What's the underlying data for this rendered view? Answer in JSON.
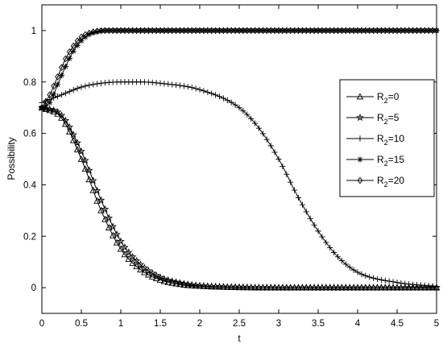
{
  "chart_data": {
    "type": "line",
    "title": "",
    "xlabel": "t",
    "ylabel": "Possibility",
    "xlim": [
      0,
      5
    ],
    "ylim": [
      -0.1,
      1.1
    ],
    "xticks": [
      "0",
      "0.5",
      "1",
      "1.5",
      "2",
      "2.5",
      "3",
      "3.5",
      "4",
      "4.5",
      "5"
    ],
    "yticks": [
      "0",
      "0.2",
      "0.4",
      "0.6",
      "0.8",
      "1"
    ],
    "grid": false,
    "legend_position": "right",
    "series": [
      {
        "name": "R₂=0",
        "label_main": "R",
        "label_sub": "2",
        "label_tail": "=0",
        "marker": "triangle",
        "x": [
          0,
          0.25,
          0.5,
          0.75,
          1.0,
          1.25,
          1.5,
          1.75,
          2.0,
          2.5,
          3.0,
          4.0,
          5.0
        ],
        "y": [
          0.7,
          0.66,
          0.5,
          0.3,
          0.15,
          0.07,
          0.03,
          0.013,
          0.006,
          0.001,
          0,
          0,
          0
        ]
      },
      {
        "name": "R₂=5",
        "label_main": "R",
        "label_sub": "2",
        "label_tail": "=5",
        "marker": "star",
        "x": [
          0,
          0.25,
          0.5,
          0.75,
          1.0,
          1.25,
          1.5,
          1.75,
          2.0,
          2.5,
          3.0,
          4.0,
          5.0
        ],
        "y": [
          0.7,
          0.67,
          0.53,
          0.34,
          0.18,
          0.09,
          0.04,
          0.018,
          0.008,
          0.002,
          0,
          0,
          0
        ]
      },
      {
        "name": "R₂=10",
        "label_main": "R",
        "label_sub": "2",
        "label_tail": "=10",
        "marker": "plus",
        "x": [
          0,
          0.25,
          0.5,
          0.75,
          1.0,
          1.25,
          1.5,
          2.0,
          2.5,
          2.75,
          3.0,
          3.25,
          3.5,
          3.75,
          4.0,
          4.5,
          5.0
        ],
        "y": [
          0.72,
          0.75,
          0.78,
          0.795,
          0.8,
          0.8,
          0.795,
          0.77,
          0.7,
          0.62,
          0.5,
          0.35,
          0.22,
          0.12,
          0.06,
          0.02,
          0.005
        ]
      },
      {
        "name": "R₂=15",
        "label_main": "R",
        "label_sub": "2",
        "label_tail": "=15",
        "marker": "asterisk",
        "x": [
          0,
          0.1,
          0.2,
          0.3,
          0.4,
          0.5,
          0.6,
          0.7,
          0.8,
          1.0,
          2.0,
          3.0,
          4.0,
          5.0
        ],
        "y": [
          0.7,
          0.72,
          0.79,
          0.86,
          0.92,
          0.96,
          0.985,
          0.995,
          1.0,
          1.0,
          1.0,
          1.0,
          1.0,
          1.0
        ]
      },
      {
        "name": "R₂=20",
        "label_main": "R",
        "label_sub": "2",
        "label_tail": "=20",
        "marker": "diamond",
        "x": [
          0,
          0.1,
          0.2,
          0.3,
          0.4,
          0.5,
          0.6,
          0.7,
          0.8,
          1.0,
          2.0,
          3.0,
          4.0,
          5.0
        ],
        "y": [
          0.7,
          0.75,
          0.82,
          0.89,
          0.94,
          0.975,
          0.99,
          0.998,
          1.0,
          1.0,
          1.0,
          1.0,
          1.0,
          1.0
        ]
      }
    ]
  }
}
